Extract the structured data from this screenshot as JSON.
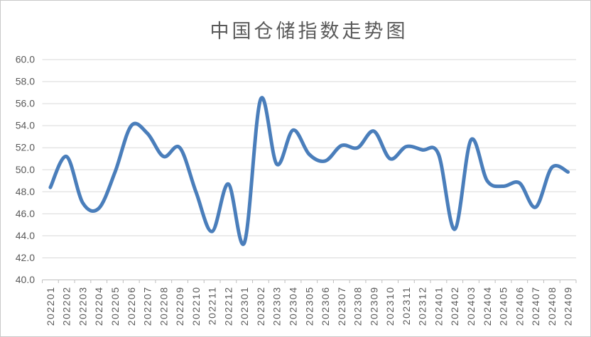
{
  "chart_data": {
    "type": "line",
    "title": "中国仓储指数走势图",
    "series_name": "中国仓储指数",
    "categories": [
      "202201",
      "202202",
      "202203",
      "202204",
      "202205",
      "202206",
      "202207",
      "202208",
      "202209",
      "202210",
      "202211",
      "202212",
      "202301",
      "202302",
      "202303",
      "202304",
      "202305",
      "202306",
      "202307",
      "202308",
      "202309",
      "202310",
      "202311",
      "202312",
      "202401",
      "202402",
      "202403",
      "202404",
      "202405",
      "202406",
      "202407",
      "202408",
      "202409"
    ],
    "values": [
      48.4,
      51.2,
      47.0,
      46.5,
      49.8,
      54.0,
      53.3,
      51.2,
      52.0,
      48.0,
      44.4,
      48.7,
      43.4,
      56.4,
      50.5,
      53.6,
      51.4,
      50.8,
      52.2,
      52.0,
      53.5,
      51.0,
      52.1,
      51.8,
      51.4,
      44.6,
      52.7,
      49.0,
      48.5,
      48.8,
      46.6,
      50.2,
      49.8
    ],
    "ylim": [
      40,
      60
    ],
    "ytick_step": 2,
    "y_tick_labels": [
      "60.0",
      "58.0",
      "56.0",
      "54.0",
      "52.0",
      "50.0",
      "48.0",
      "46.0",
      "44.0",
      "42.0",
      "40.0"
    ],
    "grid": "horizontal",
    "legend": "none",
    "smooth": true,
    "markers": "none",
    "colors": {
      "line": "#4A7EBB",
      "grid": "#D9D9D9",
      "axis": "#BFBFBF",
      "tick_label": "#595959",
      "title": "#595959"
    }
  }
}
